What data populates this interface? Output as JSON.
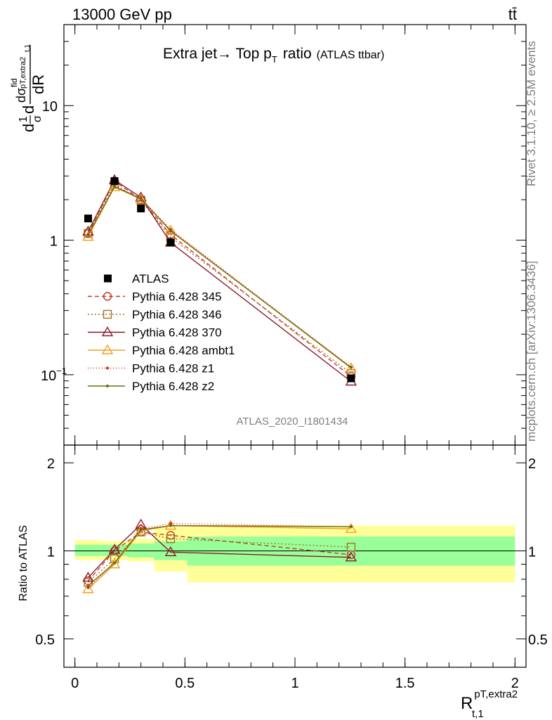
{
  "header": {
    "energy": "13000 GeV pp",
    "process": "tt̄",
    "side_rivet": "Rivet 3.1.10, ≥ 2.5M events",
    "side_site": "mcplots.cern.ch [arXiv:1306.3436]"
  },
  "chart_data": [
    {
      "type": "line",
      "title": "Extra jet→ Top p_T ratio",
      "title_main": "Extra jet→ Top p",
      "title_sub": "T",
      "title_word": "ratio",
      "title_tag": "(ATLAS ttbar)",
      "analysis_label": "ATLAS_2020_I1801434",
      "ylabel": "dσ^fid/dR_{t,1}^{pT,extra2} · 1/σ",
      "yscale": "log",
      "xlim": [
        -0.05,
        2.05
      ],
      "ylim": [
        0.03,
        40
      ],
      "y_ticks": [
        {
          "value": 0.1,
          "label": "10",
          "exp": "−1"
        },
        {
          "value": 1,
          "label": "1",
          "exp": ""
        },
        {
          "value": 10,
          "label": "10",
          "exp": ""
        }
      ],
      "x": [
        0.06,
        0.18,
        0.3,
        0.435,
        1.255
      ],
      "data": {
        "name": "ATLAS",
        "y": [
          1.45,
          2.75,
          1.72,
          0.96,
          0.094
        ]
      },
      "series": [
        {
          "name": "Pythia 6.428 345",
          "color": "#c0392b",
          "dash": "6,4",
          "marker": "circle",
          "y": [
            1.13,
            2.75,
            2.0,
            1.1,
            0.097
          ]
        },
        {
          "name": "Pythia 6.428 346",
          "color": "#a0742a",
          "dash": "2,3",
          "marker": "square",
          "y": [
            1.12,
            2.6,
            1.98,
            1.05,
            0.102
          ]
        },
        {
          "name": "Pythia 6.428 370",
          "color": "#8b1a2a",
          "dash": "",
          "marker": "triangle",
          "y": [
            1.16,
            2.8,
            2.08,
            0.96,
            0.089
          ]
        },
        {
          "name": "Pythia 6.428 ambt1",
          "color": "#f0a020",
          "dash": "",
          "marker": "triangle",
          "y": [
            1.06,
            2.48,
            2.02,
            1.18,
            0.112
          ]
        },
        {
          "name": "Pythia 6.428 z1",
          "color": "#e02010",
          "dash": "1,3",
          "marker": "dot",
          "y": [
            1.09,
            2.52,
            2.06,
            1.2,
            0.114
          ]
        },
        {
          "name": "Pythia 6.428 z2",
          "color": "#6b6b10",
          "dash": "",
          "marker": "dot",
          "y": [
            1.1,
            2.5,
            2.03,
            1.17,
            0.113
          ]
        }
      ],
      "legend_position": "center-left"
    },
    {
      "type": "line",
      "ylabel": "Ratio to ATLAS",
      "xlabel": "R",
      "xlabel_sup": "pT,extra2",
      "xlabel_sub": "t,1",
      "xlim": [
        -0.05,
        2.05
      ],
      "ylim": [
        0.4,
        2.3
      ],
      "yscale": "log",
      "x_ticks": [
        {
          "value": 0,
          "label": "0"
        },
        {
          "value": 0.5,
          "label": "0.5"
        },
        {
          "value": 1,
          "label": "1"
        },
        {
          "value": 1.5,
          "label": "1.5"
        },
        {
          "value": 2,
          "label": "2"
        }
      ],
      "y_ticks": [
        {
          "value": 0.5,
          "label": "0.5"
        },
        {
          "value": 1,
          "label": "1"
        },
        {
          "value": 2,
          "label": "2"
        }
      ],
      "bands": [
        {
          "x0": 0.0,
          "x1": 0.12,
          "stat": [
            0.96,
            1.05
          ],
          "total": [
            0.93,
            1.09
          ]
        },
        {
          "x0": 0.12,
          "x1": 0.24,
          "stat": [
            0.96,
            1.05
          ],
          "total": [
            0.93,
            1.08
          ]
        },
        {
          "x0": 0.24,
          "x1": 0.36,
          "stat": [
            0.95,
            1.06
          ],
          "total": [
            0.92,
            1.1
          ]
        },
        {
          "x0": 0.36,
          "x1": 0.51,
          "stat": [
            0.93,
            1.08
          ],
          "total": [
            0.85,
            1.21
          ]
        },
        {
          "x0": 0.51,
          "x1": 2.0,
          "stat": [
            0.89,
            1.12
          ],
          "total": [
            0.78,
            1.22
          ]
        }
      ],
      "series_ratio": [
        [
          0.79,
          1.0,
          1.16,
          1.13,
          0.97
        ],
        [
          0.78,
          0.94,
          1.16,
          1.1,
          1.03
        ],
        [
          0.81,
          1.01,
          1.23,
          0.99,
          0.95
        ],
        [
          0.74,
          0.9,
          1.17,
          1.22,
          1.19
        ],
        [
          0.75,
          0.91,
          1.19,
          1.24,
          1.21
        ],
        [
          0.76,
          0.91,
          1.18,
          1.22,
          1.21
        ]
      ]
    }
  ]
}
